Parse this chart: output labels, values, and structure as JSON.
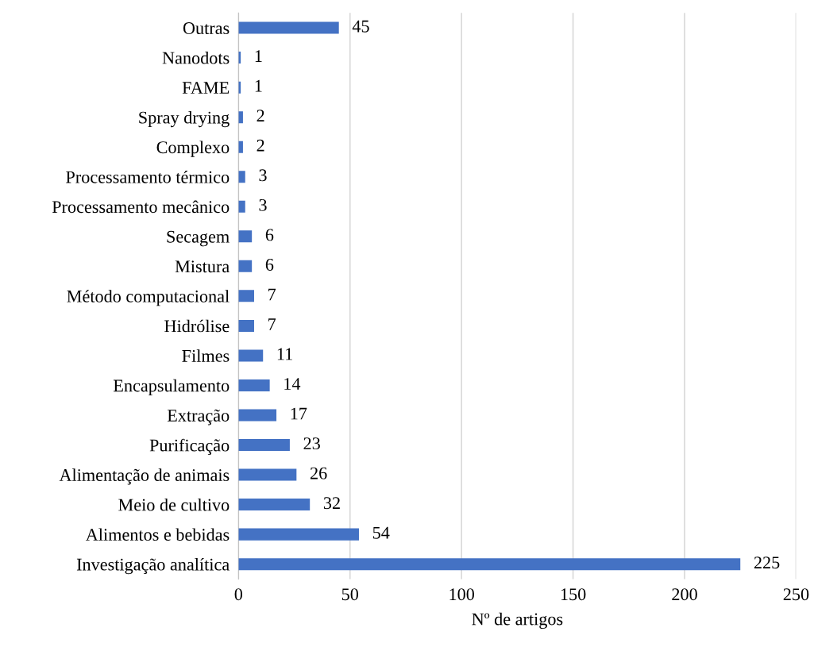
{
  "chart_data": {
    "type": "bar",
    "orientation": "horizontal",
    "xlabel": "Nº de artigos",
    "categories": [
      "Outras",
      "Nanodots",
      "FAME",
      "Spray drying",
      "Complexo",
      "Processamento térmico",
      "Processamento mecânico",
      "Secagem",
      "Mistura",
      "Método computacional",
      "Hidrólise",
      "Filmes",
      "Encapsulamento",
      "Extração",
      "Purificação",
      "Alimentação de animais",
      "Meio de cultivo",
      "Alimentos e bebidas",
      "Investigação analítica"
    ],
    "values": [
      45,
      1,
      1,
      2,
      2,
      3,
      3,
      6,
      6,
      7,
      7,
      11,
      14,
      17,
      23,
      26,
      32,
      54,
      225
    ],
    "color": "#4472c4",
    "xlim": [
      0,
      250
    ],
    "xticks": [
      0,
      50,
      100,
      150,
      200,
      250
    ],
    "grid": "x",
    "data_labels": true
  }
}
